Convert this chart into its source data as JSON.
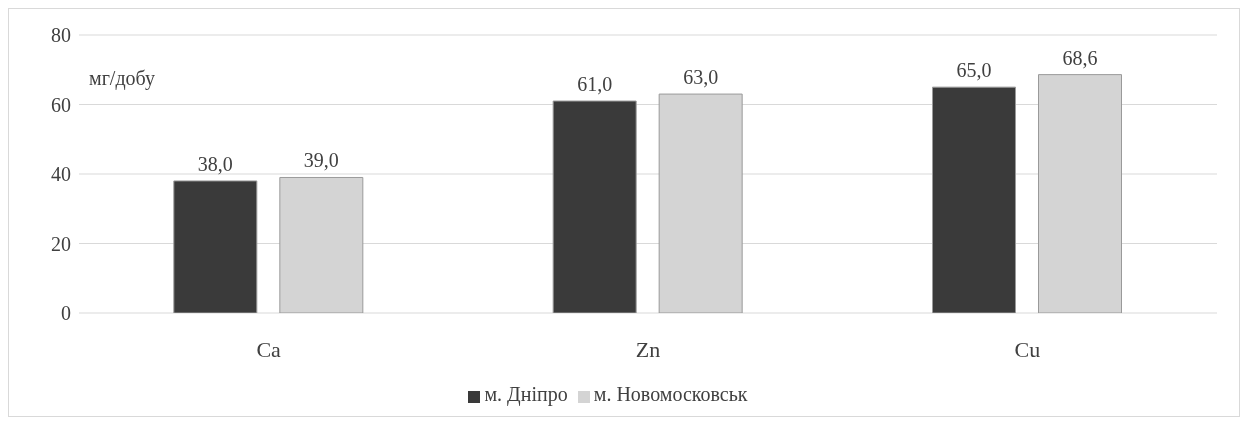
{
  "chart_data": {
    "type": "bar",
    "ylabel": "мг/добу",
    "categories": [
      "Ca",
      "Zn",
      "Cu"
    ],
    "series": [
      {
        "name": "м. Дніпро",
        "color": "#3a3a3a",
        "values": [
          38.0,
          61.0,
          65.0
        ],
        "value_labels": [
          "38,0",
          "61,0",
          "65,0"
        ]
      },
      {
        "name": "м. Новомосковськ",
        "color": "#d4d4d4",
        "values": [
          39.0,
          63.0,
          68.6
        ],
        "value_labels": [
          "39,0",
          "63,0",
          "68,6"
        ]
      }
    ],
    "ylim": [
      0,
      80
    ],
    "yticks": [
      0,
      20,
      40,
      60,
      80
    ],
    "grid": "y",
    "legend": "bottom"
  }
}
